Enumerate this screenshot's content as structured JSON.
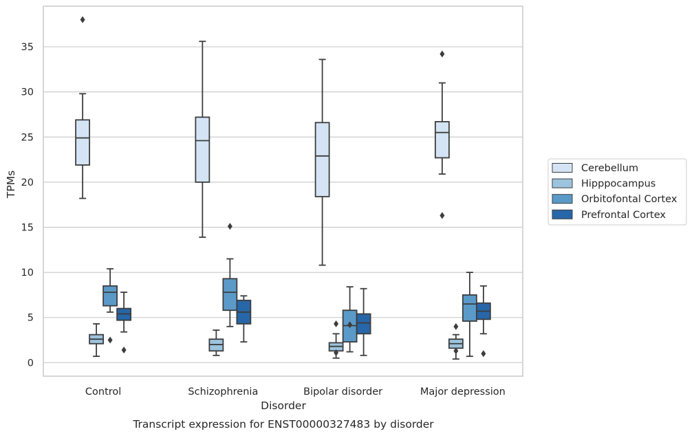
{
  "chart_data": {
    "type": "box",
    "caption": "Transcript expression for ENST00000327483 by disorder",
    "xlabel": "Disorder",
    "ylabel": "TPMs",
    "ylim": [
      -1.5,
      39.5
    ],
    "yticks": [
      0,
      5,
      10,
      15,
      20,
      25,
      30,
      35
    ],
    "grid": true,
    "legend_position": "right",
    "categories": [
      "Control",
      "Schizophrenia",
      "Bipolar disorder",
      "Major depression"
    ],
    "series": [
      {
        "name": "Cerebellum",
        "color": "#d4e4f4",
        "boxes": [
          {
            "whislo": 18.2,
            "q1": 21.9,
            "med": 24.9,
            "q3": 26.9,
            "whishi": 29.8,
            "fliers": [
              38.0
            ]
          },
          {
            "whislo": 13.9,
            "q1": 20.0,
            "med": 24.6,
            "q3": 27.2,
            "whishi": 35.6,
            "fliers": []
          },
          {
            "whislo": 10.8,
            "q1": 18.4,
            "med": 22.9,
            "q3": 26.6,
            "whishi": 33.6,
            "fliers": []
          },
          {
            "whislo": 20.9,
            "q1": 22.7,
            "med": 25.5,
            "q3": 26.7,
            "whishi": 31.0,
            "fliers": [
              34.2,
              16.3
            ]
          }
        ]
      },
      {
        "name": "Hipppocampus",
        "color": "#9dc4de",
        "boxes": [
          {
            "whislo": 0.7,
            "q1": 2.1,
            "med": 2.6,
            "q3": 3.1,
            "whishi": 4.3,
            "fliers": []
          },
          {
            "whislo": 0.8,
            "q1": 1.3,
            "med": 2.0,
            "q3": 2.6,
            "whishi": 3.6,
            "fliers": []
          },
          {
            "whislo": 0.5,
            "q1": 1.3,
            "med": 1.8,
            "q3": 2.2,
            "whishi": 3.2,
            "fliers": [
              4.3,
              1.1
            ]
          },
          {
            "whislo": 0.4,
            "q1": 1.6,
            "med": 2.1,
            "q3": 2.6,
            "whishi": 3.1,
            "fliers": [
              4.0,
              1.3
            ]
          }
        ]
      },
      {
        "name": "Orbitofontal Cortex",
        "color": "#5b9ac8",
        "boxes": [
          {
            "whislo": 5.6,
            "q1": 6.3,
            "med": 7.8,
            "q3": 8.5,
            "whishi": 10.4,
            "fliers": [
              2.5
            ]
          },
          {
            "whislo": 4.0,
            "q1": 5.8,
            "med": 7.8,
            "q3": 9.3,
            "whishi": 11.5,
            "fliers": [
              15.1
            ]
          },
          {
            "whislo": 1.2,
            "q1": 2.3,
            "med": 4.1,
            "q3": 5.8,
            "whishi": 8.4,
            "fliers": [
              4.2
            ]
          },
          {
            "whislo": 0.7,
            "q1": 4.6,
            "med": 6.5,
            "q3": 7.5,
            "whishi": 10.0,
            "fliers": []
          }
        ]
      },
      {
        "name": "Prefrontal Cortex",
        "color": "#2766a8",
        "boxes": [
          {
            "whislo": 3.4,
            "q1": 4.7,
            "med": 5.4,
            "q3": 6.0,
            "whishi": 7.8,
            "fliers": [
              1.4
            ]
          },
          {
            "whislo": 2.3,
            "q1": 4.3,
            "med": 5.6,
            "q3": 6.9,
            "whishi": 7.4,
            "fliers": []
          },
          {
            "whislo": 0.8,
            "q1": 3.2,
            "med": 4.4,
            "q3": 5.4,
            "whishi": 8.2,
            "fliers": []
          },
          {
            "whislo": 3.2,
            "q1": 4.8,
            "med": 5.7,
            "q3": 6.6,
            "whishi": 8.5,
            "fliers": [
              1.0
            ]
          }
        ]
      }
    ]
  }
}
